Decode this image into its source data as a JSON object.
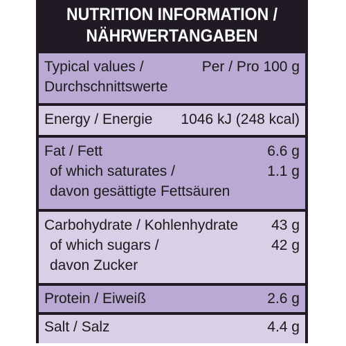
{
  "header": {
    "line1": "NUTRITION INFORMATION /",
    "line2": "NÄHRWERTANGABEN"
  },
  "rows": [
    {
      "label_lines": [
        "Typical values /",
        "Durchschnittswerte"
      ],
      "value_lines": [
        "Per / Pro 100 g"
      ]
    },
    {
      "label_lines": [
        "Energy / Energie"
      ],
      "value_lines": [
        "1046 kJ (248 kcal)"
      ]
    },
    {
      "label_lines": [
        "Fat / Fett",
        "of which saturates /",
        "davon gesättigte Fettsäuren"
      ],
      "value_lines": [
        "6.6 g",
        "1.1 g"
      ]
    },
    {
      "label_lines": [
        "Carbohydrate / Kohlenhydrate",
        "of which sugars /",
        "davon Zucker"
      ],
      "value_lines": [
        "43 g",
        "42 g"
      ]
    },
    {
      "label_lines": [
        "Protein / Eiweiß"
      ],
      "value_lines": [
        "2.6 g"
      ]
    },
    {
      "label_lines": [
        "Salt / Salz"
      ],
      "value_lines": [
        "4.4 g"
      ]
    }
  ],
  "colors": {
    "header_bg": "#1f1a24",
    "row_dark": "#b9a9d3",
    "row_light": "#d9d0e8",
    "text": "#1a1a1a"
  }
}
